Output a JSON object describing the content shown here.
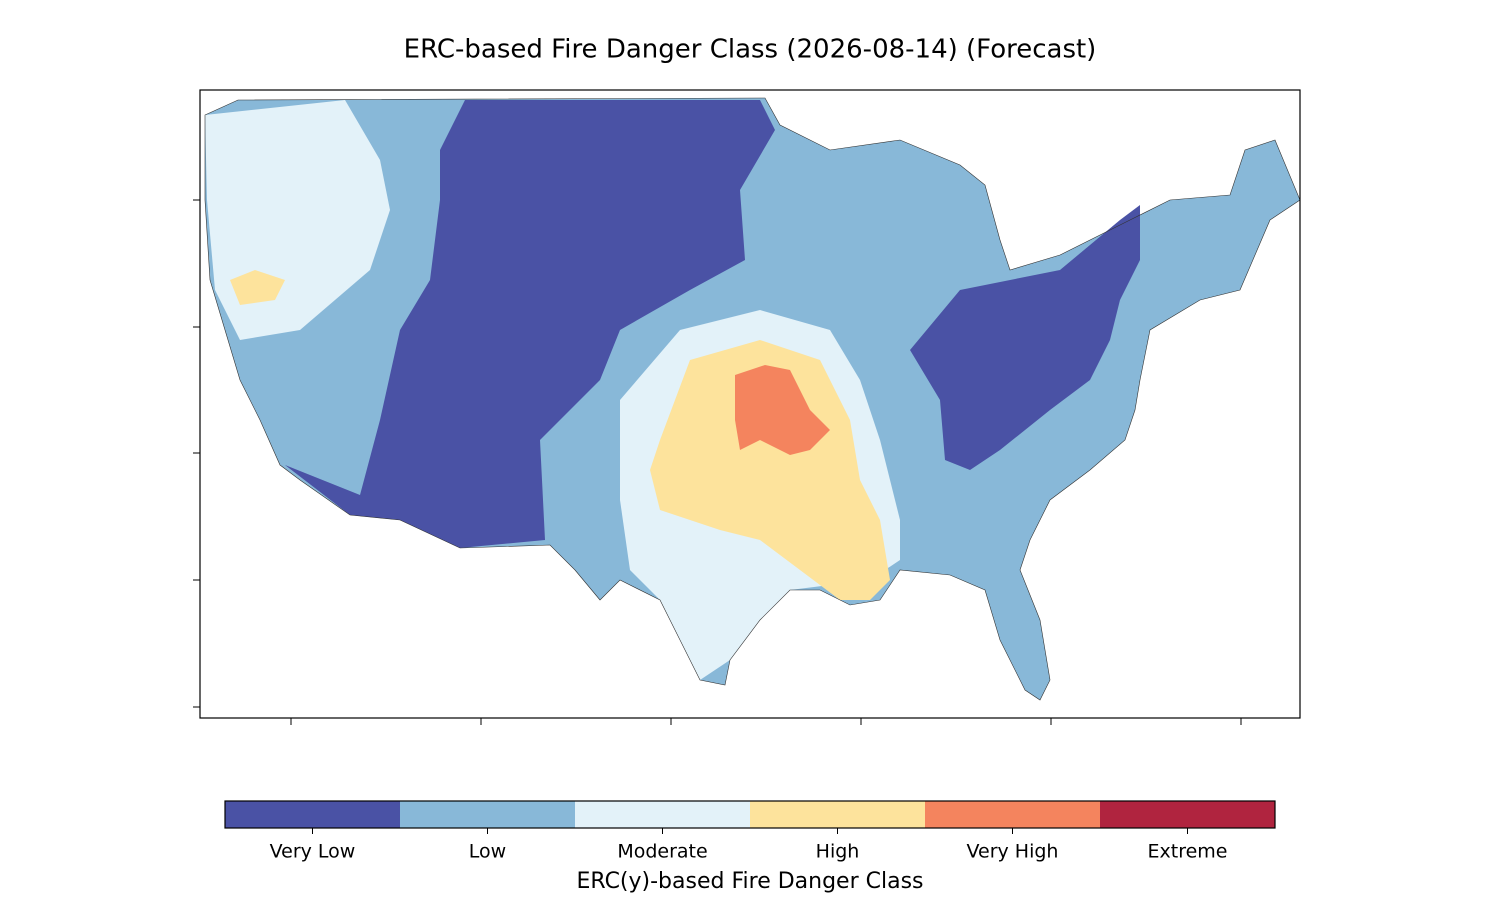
{
  "title": "ERC-based Fire Danger Class (2026-08-14) (Forecast)",
  "colorbar": {
    "label": "ERC(y)-based Fire Danger Class",
    "classes": [
      {
        "name": "Very Low",
        "color": "#4a52a5"
      },
      {
        "name": "Low",
        "color": "#88b8d8"
      },
      {
        "name": "Moderate",
        "color": "#e3f2f9"
      },
      {
        "name": "High",
        "color": "#fde39c"
      },
      {
        "name": "Very High",
        "color": "#f4845e"
      },
      {
        "name": "Extreme",
        "color": "#b0243f"
      }
    ]
  }
}
